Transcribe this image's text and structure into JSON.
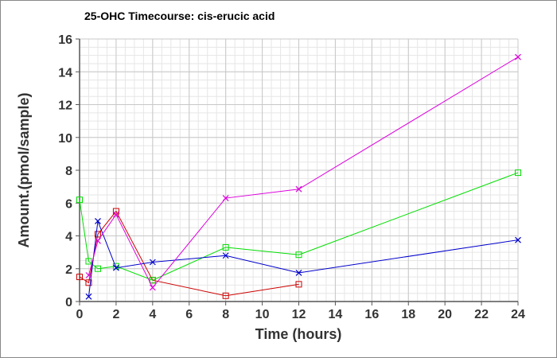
{
  "chart_data": {
    "type": "line",
    "title": "25-OHC Timecourse: cis-erucic acid",
    "xlabel": "Time (hours)",
    "ylabel": "Amount.(pmol/sample)",
    "xlim": [
      0,
      24
    ],
    "ylim": [
      0,
      16
    ],
    "xticks": [
      0,
      2,
      4,
      6,
      8,
      10,
      12,
      14,
      16,
      18,
      20,
      22,
      24
    ],
    "yticks": [
      0,
      2,
      4,
      6,
      8,
      10,
      12,
      14,
      16
    ],
    "grid": true,
    "legend": "none",
    "series": [
      {
        "color": "#cc0000",
        "marker": "square",
        "x": [
          0,
          0.5,
          1,
          2,
          4,
          8,
          12
        ],
        "y": [
          1.5,
          1.15,
          4.1,
          5.5,
          1.3,
          0.35,
          1.05
        ]
      },
      {
        "color": "#00dd00",
        "marker": "square",
        "x": [
          0,
          0.5,
          1,
          2,
          4,
          8,
          12,
          24
        ],
        "y": [
          6.2,
          2.45,
          2.0,
          2.15,
          1.3,
          3.3,
          2.85,
          7.85
        ]
      },
      {
        "color": "#0000cc",
        "marker": "x",
        "x": [
          0.5,
          1,
          2,
          4,
          8,
          12,
          24
        ],
        "y": [
          0.3,
          4.9,
          2.05,
          2.4,
          2.8,
          1.75,
          3.75
        ]
      },
      {
        "color": "#dd00dd",
        "marker": "x",
        "x": [
          0.5,
          1,
          2,
          4,
          8,
          12,
          24
        ],
        "y": [
          1.6,
          3.7,
          5.3,
          0.85,
          6.3,
          6.85,
          14.9
        ]
      }
    ]
  }
}
